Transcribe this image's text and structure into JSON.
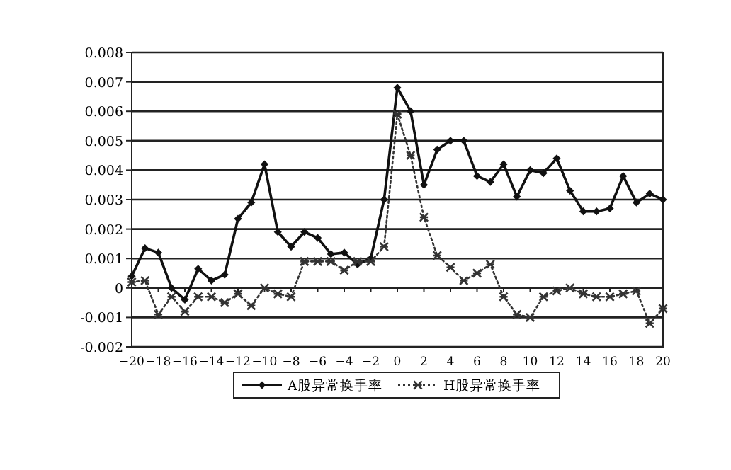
{
  "chart_data": {
    "type": "line",
    "x": [
      -20,
      -19,
      -18,
      -17,
      -16,
      -15,
      -14,
      -13,
      -12,
      -11,
      -10,
      -9,
      -8,
      -7,
      -6,
      -5,
      -4,
      -3,
      -2,
      -1,
      0,
      1,
      2,
      3,
      4,
      5,
      6,
      7,
      8,
      9,
      10,
      11,
      12,
      13,
      14,
      15,
      16,
      17,
      18,
      19,
      20
    ],
    "series": [
      {
        "name": "A股异常换手率",
        "color": "#111111",
        "marker": "diamond",
        "line_style": "solid",
        "values": [
          0.0004,
          0.00135,
          0.0012,
          0.0,
          -0.0004,
          0.00065,
          0.00025,
          0.00045,
          0.00235,
          0.0029,
          0.0042,
          0.0019,
          0.0014,
          0.0019,
          0.0017,
          0.00115,
          0.0012,
          0.0008,
          0.001,
          0.003,
          0.0068,
          0.006,
          0.0035,
          0.0047,
          0.005,
          0.005,
          0.0038,
          0.0036,
          0.0042,
          0.0031,
          0.004,
          0.0039,
          0.0044,
          0.0033,
          0.0026,
          0.0026,
          0.0027,
          0.0038,
          0.0029,
          0.0032,
          0.003
        ]
      },
      {
        "name": "H股异常换手率",
        "color": "#333333",
        "marker": "cross",
        "line_style": "dotted",
        "values": [
          0.0002,
          0.00025,
          -0.0009,
          -0.0003,
          -0.0008,
          -0.0003,
          -0.0003,
          -0.0005,
          -0.0002,
          -0.0006,
          0.0,
          -0.0002,
          -0.0003,
          0.0009,
          0.0009,
          0.0009,
          0.0006,
          0.0009,
          0.0009,
          0.0014,
          0.0059,
          0.0045,
          0.0024,
          0.0011,
          0.0007,
          0.00025,
          0.0005,
          0.0008,
          -0.0003,
          -0.0009,
          -0.001,
          -0.0003,
          -0.0001,
          0.0,
          -0.0002,
          -0.0003,
          -0.0003,
          -0.0002,
          -0.0001,
          -0.0012,
          -0.0007
        ]
      }
    ],
    "xlim": [
      -20,
      20
    ],
    "xticks": [
      -20,
      -18,
      -16,
      -14,
      -12,
      -10,
      -8,
      -6,
      -4,
      -2,
      0,
      2,
      4,
      6,
      8,
      10,
      12,
      14,
      16,
      18,
      20
    ],
    "ylim": [
      -0.002,
      0.008
    ],
    "yticks": [
      -0.002,
      -0.001,
      0,
      0.001,
      0.002,
      0.003,
      0.004,
      0.005,
      0.006,
      0.007,
      0.008
    ],
    "grid": "y",
    "legend": "bottom"
  }
}
